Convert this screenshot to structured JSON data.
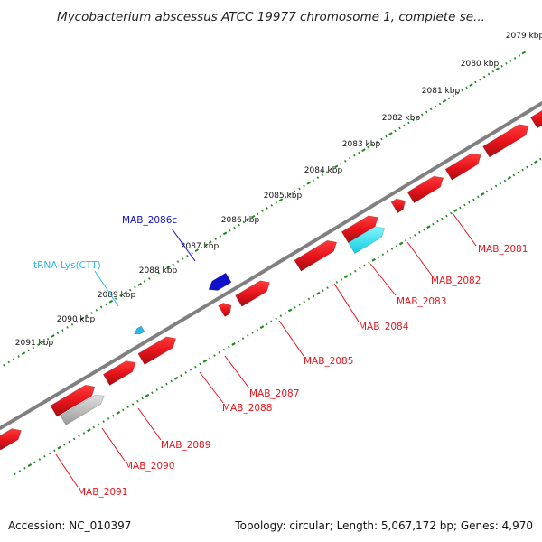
{
  "title": "Mycobacterium abscessus ATCC 19977 chromosome 1, complete se...",
  "footer": {
    "accession": "Accession: NC_010397",
    "summary": "Topology: circular; Length: 5,067,172 bp; Genes: 4,970"
  },
  "ticks": [
    "2079 kbp",
    "2080 kbp",
    "2081 kbp",
    "2082 kbp",
    "2083 kbp",
    "2084 kbp",
    "2085 kbp",
    "2086 kbp",
    "2087 kbp",
    "2088 kbp",
    "2089 kbp",
    "2090 kbp",
    "2091 kbp"
  ],
  "genes_lower": [
    {
      "label": "MAB_2081",
      "color": "#e8141c"
    },
    {
      "label": "MAB_2082",
      "color": "#e8141c"
    },
    {
      "label": "MAB_2083",
      "color": "#e8141c"
    },
    {
      "label": "MAB_2084",
      "color": "#e8141c"
    },
    {
      "label": "MAB_2085",
      "color": "#e8141c"
    },
    {
      "label": "MAB_2087",
      "color": "#e8141c"
    },
    {
      "label": "MAB_2088",
      "color": "#e8141c"
    },
    {
      "label": "MAB_2089",
      "color": "#e8141c"
    },
    {
      "label": "MAB_2090",
      "color": "#e8141c"
    },
    {
      "label": "MAB_2091",
      "color": "#e8141c"
    }
  ],
  "genes_upper": [
    {
      "label": "MAB_2086c",
      "color": "#1010cc"
    },
    {
      "label": "tRNA-Lys(CTT)",
      "color": "#29b6e8"
    }
  ],
  "colors": {
    "cds": "#e8141c",
    "cds_dark": "#a50c10",
    "trna": "#29b6e8",
    "cds_reverse": "#1010cc",
    "rrna_cyan": "#22e0f0",
    "pseudo_gray": "#b8b8b8",
    "misc_blue": "#4a7fb0",
    "backbone": "#808080",
    "ruler_dots": "#228b22"
  }
}
